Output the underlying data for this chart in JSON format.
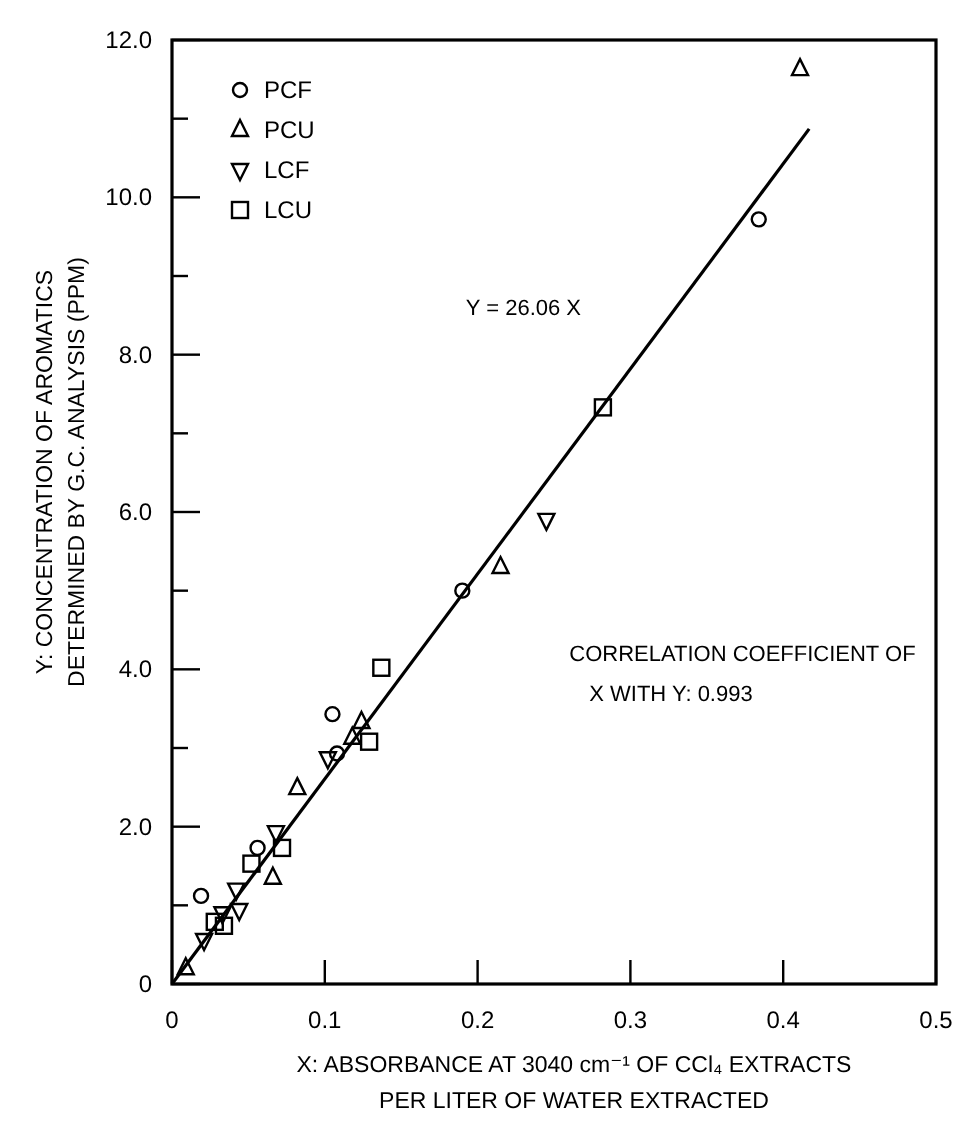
{
  "chart_data": {
    "type": "scatter",
    "xlabel": "X: ABSORBANCE AT 3040 cm⁻¹ OF CCl₄ EXTRACTS\nPER LITER OF WATER EXTRACTED",
    "ylabel": "Y: CONCENTRATION OF AROMATICS\nDETERMINED BY G.C. ANALYSIS (PPM)",
    "xlim": [
      0,
      0.5
    ],
    "xticks": [
      0,
      0.1,
      0.2,
      0.3,
      0.4,
      0.5
    ],
    "ylim": [
      0,
      12
    ],
    "yticks": [
      {
        "value": 0,
        "label": "0"
      },
      {
        "value": 1,
        "label": null
      },
      {
        "value": 2,
        "label": "2.0"
      },
      {
        "value": 3,
        "label": null
      },
      {
        "value": 4,
        "label": "4.0"
      },
      {
        "value": 5,
        "label": null
      },
      {
        "value": 6,
        "label": "6.0"
      },
      {
        "value": 7,
        "label": null
      },
      {
        "value": 8,
        "label": "8.0"
      },
      {
        "value": 9,
        "label": null
      },
      {
        "value": 10,
        "label": "10.0"
      },
      {
        "value": 11,
        "label": null
      },
      {
        "value": 12,
        "label": "12.0"
      }
    ],
    "grid": false,
    "legend": "top left",
    "series": [
      {
        "name": "PCF",
        "color": "#000000",
        "marker": "circle",
        "x": [
          0.384,
          0.19,
          0.105,
          0.108,
          0.056,
          0.019
        ],
        "values": [
          9.72,
          5.0,
          3.43,
          2.93,
          1.73,
          1.12
        ]
      },
      {
        "name": "PCU",
        "color": "#000000",
        "marker": "triangle",
        "x": [
          0.411,
          0.215,
          0.124,
          0.118,
          0.082,
          0.066,
          0.009
        ],
        "values": [
          11.63,
          5.3,
          3.33,
          3.13,
          2.49,
          1.35,
          0.2
        ]
      },
      {
        "name": "LCF",
        "color": "#000000",
        "marker": "triangle-down",
        "x": [
          0.245,
          0.102,
          0.068,
          0.042,
          0.044,
          0.033,
          0.021
        ],
        "values": [
          5.9,
          2.87,
          1.93,
          1.2,
          0.94,
          0.9,
          0.56
        ]
      },
      {
        "name": "LCU",
        "color": "#000000",
        "marker": "square",
        "x": [
          0.282,
          0.137,
          0.129,
          0.072,
          0.052,
          0.028,
          0.034
        ],
        "values": [
          7.33,
          4.02,
          3.08,
          1.73,
          1.53,
          0.79,
          0.74
        ]
      },
      {
        "type": "line",
        "color": "#000000",
        "marker": "none",
        "x": [
          0,
          0.417
        ],
        "values": [
          0,
          10.87
        ]
      }
    ],
    "annotations": [
      "Y = 26.06 X",
      "CORRELATION COEFFICIENT OF",
      "X WITH Y: 0.993"
    ]
  }
}
